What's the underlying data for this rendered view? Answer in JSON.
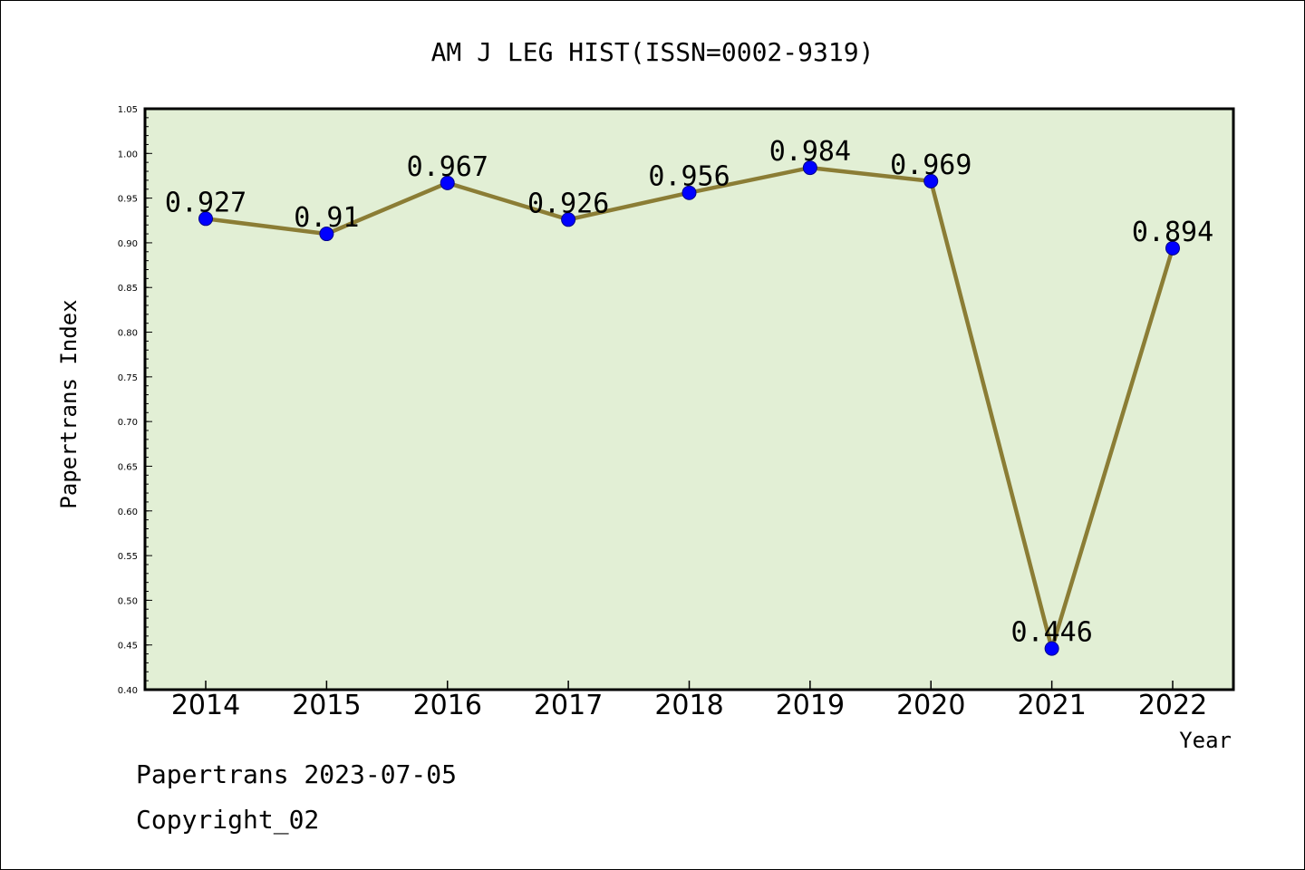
{
  "chart_data": {
    "type": "line",
    "title": "AM J LEG HIST(ISSN=0002-9319)",
    "xlabel": "Year",
    "ylabel": "Papertrans Index",
    "categories": [
      "2014",
      "2015",
      "2016",
      "2017",
      "2018",
      "2019",
      "2020",
      "2021",
      "2022"
    ],
    "series": [
      {
        "values": [
          0.927,
          0.91,
          0.967,
          0.926,
          0.956,
          0.984,
          0.969,
          0.446,
          0.894
        ],
        "labels": [
          "0.927",
          "0.91",
          "0.967",
          "0.926",
          "0.956",
          "0.984",
          "0.969",
          "0.446",
          "0.894"
        ]
      }
    ],
    "ylim": [
      0.4,
      1.05
    ],
    "yticks": [
      "0.40",
      "0.45",
      "0.50",
      "0.55",
      "0.60",
      "0.65",
      "0.70",
      "0.75",
      "0.80",
      "0.85",
      "0.90",
      "0.95",
      "1.00",
      "1.05"
    ],
    "grid": false,
    "legend": "none",
    "colors": {
      "plot_background": "#e2efd5",
      "line": "#8b7d35",
      "marker": "#0000ff"
    }
  },
  "footer": {
    "date_line": "Papertrans 2023-07-05",
    "copyright": "Copyright_02"
  }
}
